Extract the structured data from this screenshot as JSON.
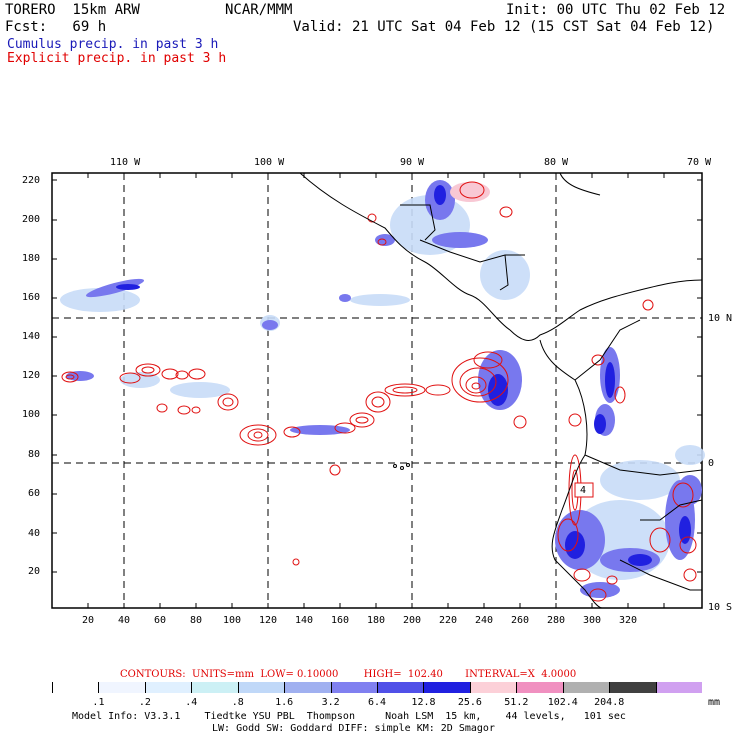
{
  "header": {
    "model": "TORERO  15km ARW",
    "org": "NCAR/MMM",
    "init": "Init: 00 UTC Thu 02 Feb 12",
    "fcst": "Fcst:   69 h",
    "valid": "Valid: 21 UTC Sat 04 Feb 12 (15 CST Sat 04 Feb 12)",
    "cumulus": "Cumulus precip. in past 3 h",
    "explicit": "Explicit precip. in past 3 h"
  },
  "colors": {
    "cumulus_text": "#1a1ab8",
    "explicit_text": "#e00000",
    "contour_red": "#e01010"
  },
  "map": {
    "lon_labels": [
      "110 W",
      "100 W",
      "90 W",
      "80 W",
      "70 W"
    ],
    "lat_labels": [
      "10 N",
      "0",
      "10 S"
    ],
    "x_ticks": [
      "20",
      "40",
      "60",
      "80",
      "100",
      "120",
      "140",
      "160",
      "180",
      "200",
      "220",
      "240",
      "260",
      "280",
      "300",
      "320"
    ],
    "y_ticks": [
      "20",
      "40",
      "60",
      "80",
      "100",
      "120",
      "140",
      "160",
      "180",
      "200",
      "220"
    ],
    "box_label": "4"
  },
  "colorbar": {
    "contours_caption": "CONTOURS:  UNITS=mm  LOW= 0.10000        HIGH=  102.40       INTERVAL=X  4.0000",
    "unit": "mm",
    "colors": [
      "#ffffff",
      "#f0f5ff",
      "#e0f0ff",
      "#ccf0f5",
      "#c0d8f8",
      "#a0b0f0",
      "#8080f0",
      "#5050e8",
      "#2020e0",
      "#fcd0d8",
      "#f090c0",
      "#b0b0b0",
      "#404040",
      "#d0a0f0"
    ],
    "labels": [
      ".1",
      ".2",
      ".4",
      ".8",
      "1.6",
      "3.2",
      "6.4",
      "12.8",
      "25.6",
      "51.2",
      "102.4",
      "204.8"
    ]
  },
  "footer": {
    "line1": "Model Info: V3.3.1    Tiedtke YSU PBL  Thompson     Noah LSM  15 km,    44 levels,   101 sec",
    "line2": "LW: Godd SW: Goddard DIFF: simple KM: 2D Smagor"
  }
}
